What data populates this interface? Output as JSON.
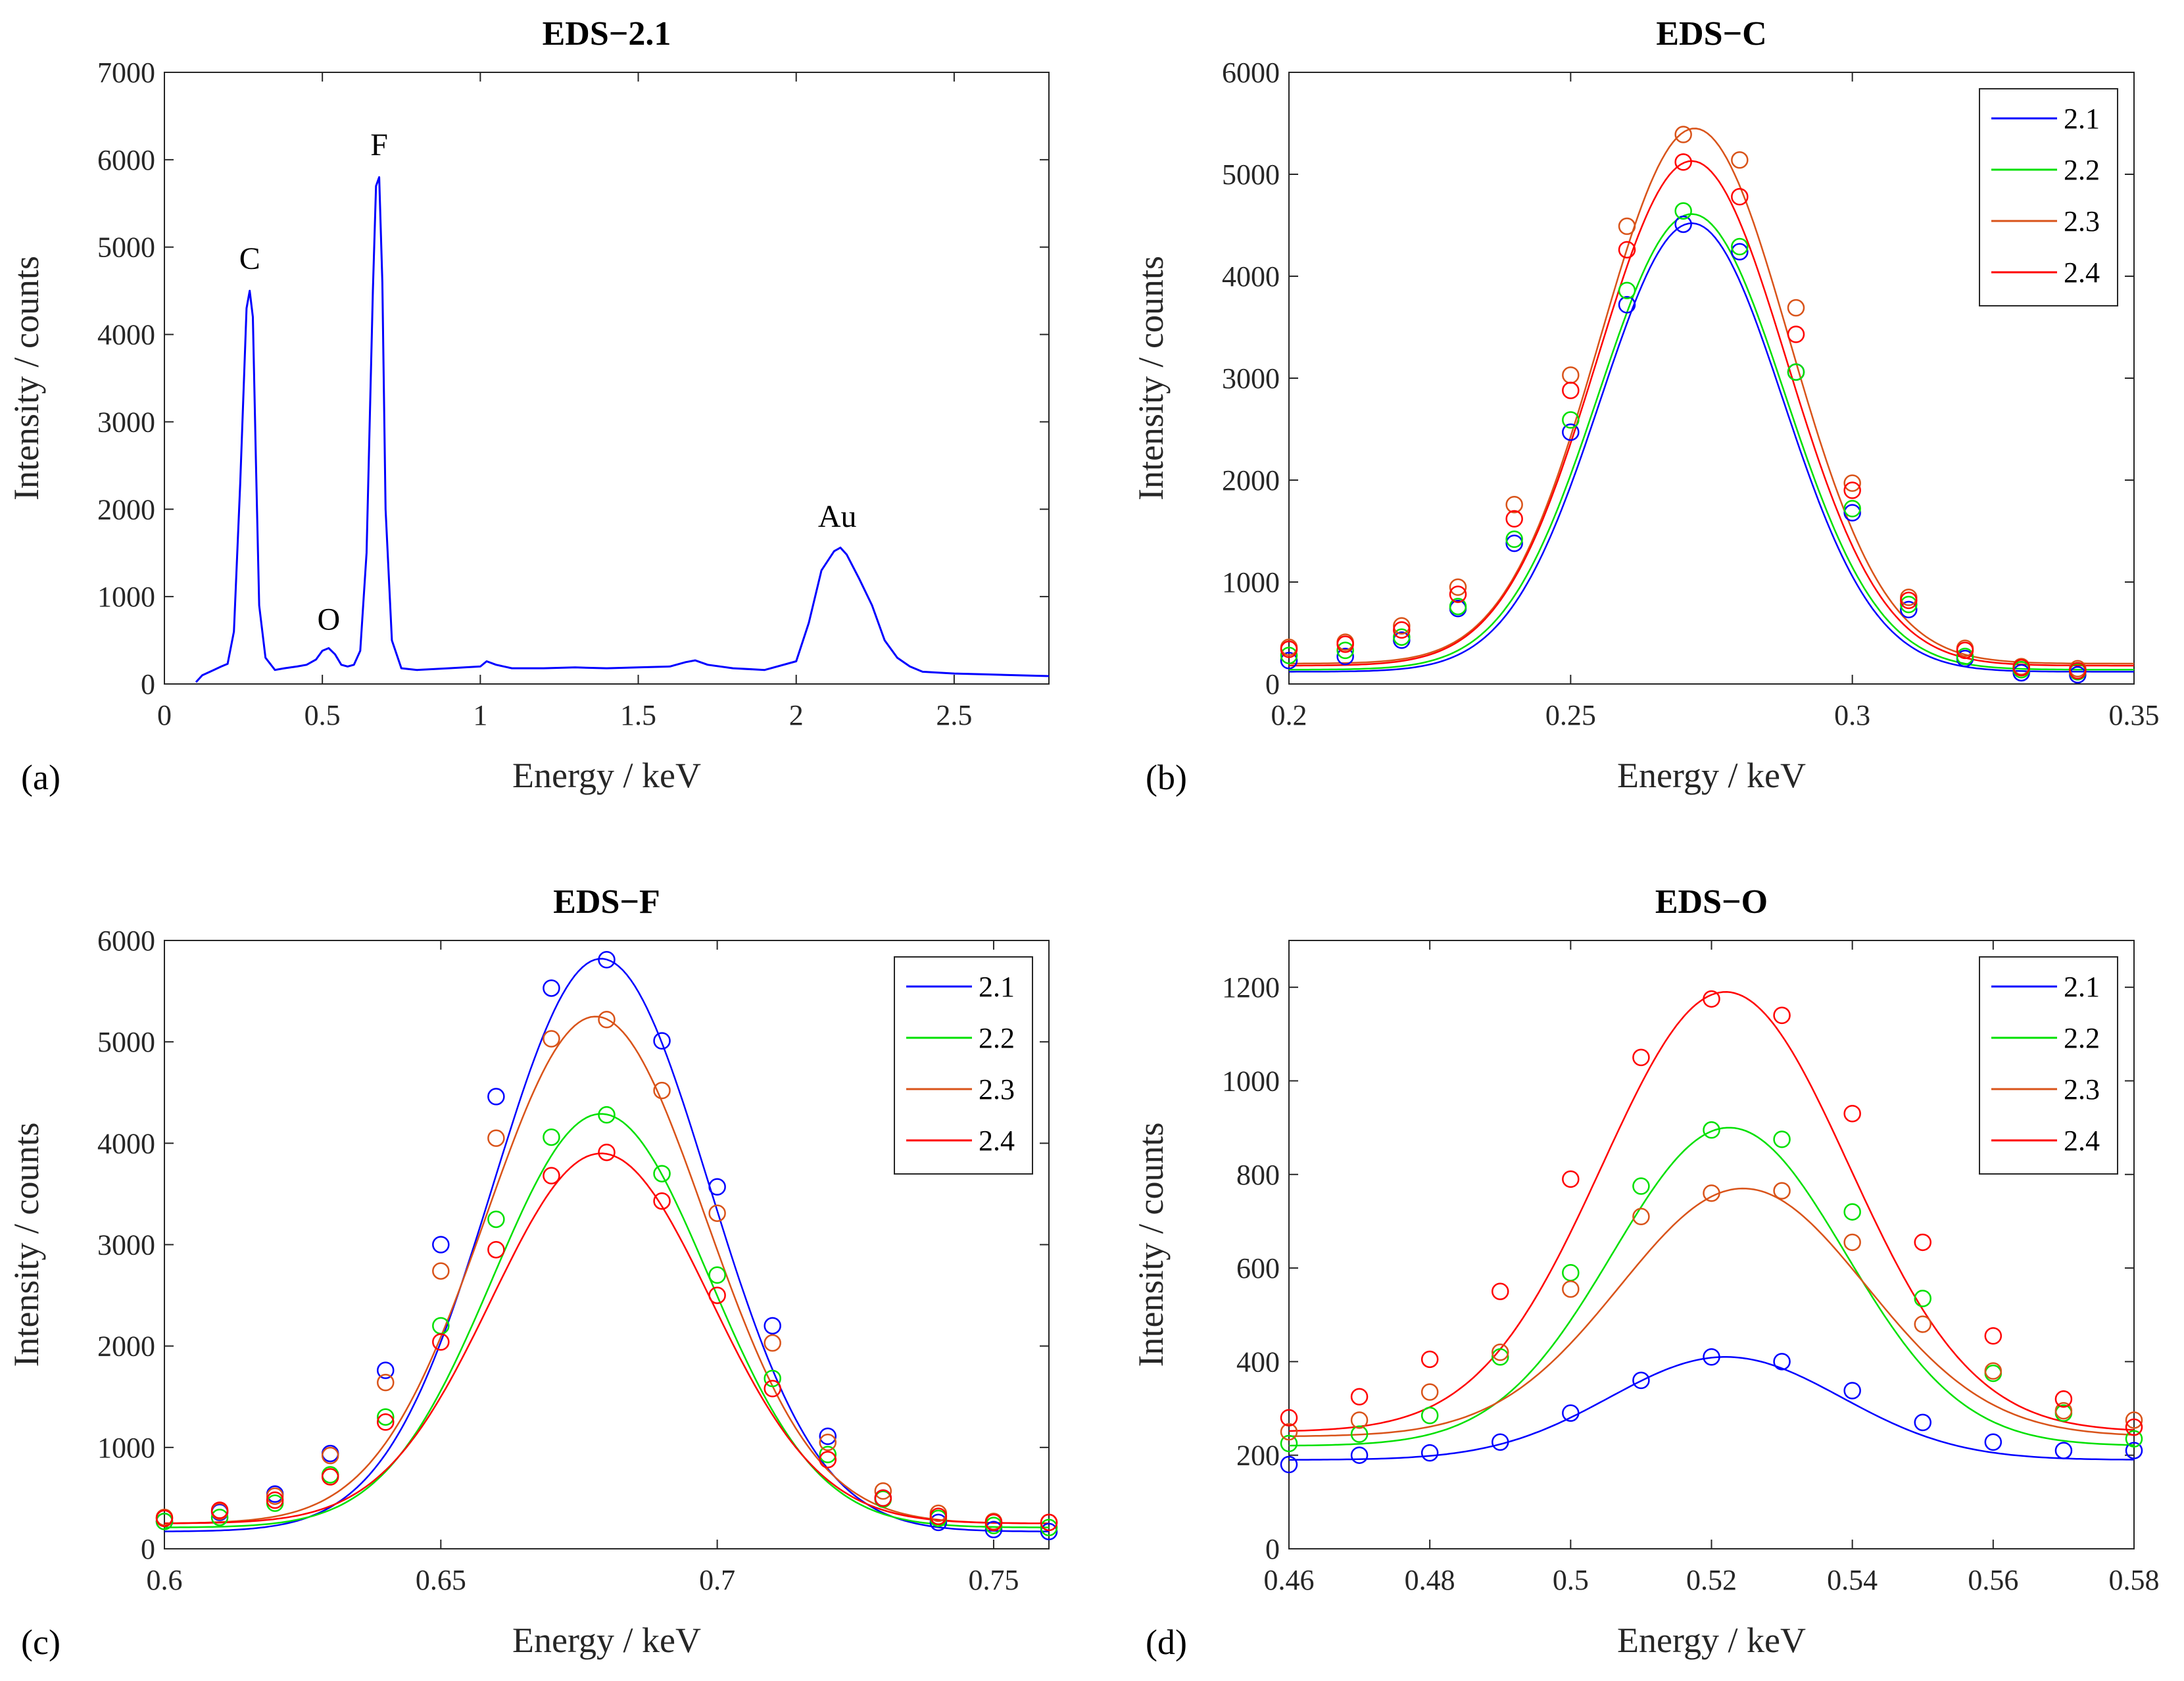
{
  "colors": {
    "s21": "#0000ff",
    "s22": "#00e000",
    "s23": "#d95319",
    "s24": "#ff0000"
  },
  "chart_data": [
    {
      "panel": "(a)",
      "title": "EDS−2.1",
      "type": "line",
      "xlabel": "Energy / keV",
      "ylabel": "Intensity / counts",
      "xlim": [
        0,
        2.8
      ],
      "ylim": [
        0,
        7000
      ],
      "xticks": [
        0,
        0.5,
        1,
        1.5,
        2,
        2.5
      ],
      "xtick_labels": [
        "0",
        "0.5",
        "1",
        "1.5",
        "2",
        "2.5"
      ],
      "yticks": [
        0,
        1000,
        2000,
        3000,
        4000,
        5000,
        6000,
        7000
      ],
      "ytick_labels": [
        "0",
        "1000",
        "2000",
        "3000",
        "4000",
        "5000",
        "6000",
        "7000"
      ],
      "series": [
        {
          "name": "2.1",
          "color": "#0000ff",
          "x": [
            0.1,
            0.12,
            0.15,
            0.18,
            0.2,
            0.22,
            0.24,
            0.26,
            0.27,
            0.28,
            0.29,
            0.3,
            0.32,
            0.35,
            0.38,
            0.42,
            0.45,
            0.48,
            0.5,
            0.52,
            0.54,
            0.56,
            0.58,
            0.6,
            0.62,
            0.64,
            0.66,
            0.67,
            0.68,
            0.69,
            0.7,
            0.72,
            0.75,
            0.8,
            0.9,
            1.0,
            1.02,
            1.05,
            1.1,
            1.2,
            1.3,
            1.4,
            1.5,
            1.6,
            1.65,
            1.68,
            1.72,
            1.8,
            1.9,
            2.0,
            2.04,
            2.08,
            2.12,
            2.14,
            2.16,
            2.2,
            2.24,
            2.28,
            2.32,
            2.36,
            2.4,
            2.5,
            2.6,
            2.7,
            2.8
          ],
          "y": [
            20,
            100,
            150,
            200,
            230,
            600,
            2300,
            4300,
            4500,
            4200,
            2500,
            900,
            300,
            160,
            180,
            200,
            220,
            280,
            380,
            410,
            340,
            220,
            200,
            220,
            380,
            1500,
            4500,
            5700,
            5800,
            4600,
            2000,
            500,
            180,
            160,
            180,
            200,
            260,
            220,
            180,
            180,
            190,
            180,
            190,
            200,
            250,
            270,
            220,
            180,
            160,
            260,
            700,
            1300,
            1520,
            1560,
            1480,
            1200,
            900,
            500,
            300,
            200,
            140,
            120,
            110,
            100,
            90
          ]
        }
      ],
      "annotations": [
        {
          "text": "C",
          "x": 0.27,
          "y": 4750
        },
        {
          "text": "O",
          "x": 0.52,
          "y": 620
        },
        {
          "text": "F",
          "x": 0.68,
          "y": 6050
        },
        {
          "text": "Au",
          "x": 2.13,
          "y": 1800
        }
      ]
    },
    {
      "panel": "(b)",
      "title": "EDS−C",
      "type": "line+scatter",
      "xlabel": "Energy / keV",
      "ylabel": "Intensity / counts",
      "xlim": [
        0.2,
        0.35
      ],
      "ylim": [
        0,
        6000
      ],
      "xticks": [
        0.2,
        0.25,
        0.3,
        0.35
      ],
      "xtick_labels": [
        "0.2",
        "0.25",
        "0.3",
        "0.35"
      ],
      "yticks": [
        0,
        1000,
        2000,
        3000,
        4000,
        5000,
        6000
      ],
      "ytick_labels": [
        "0",
        "1000",
        "2000",
        "3000",
        "4000",
        "5000",
        "6000"
      ],
      "legend_position": "top-right",
      "x": [
        0.2,
        0.21,
        0.22,
        0.23,
        0.24,
        0.25,
        0.26,
        0.27,
        0.28,
        0.29,
        0.3,
        0.31,
        0.32,
        0.33,
        0.34
      ],
      "series": [
        {
          "name": "2.1",
          "color": "#0000ff",
          "fit": {
            "A": 4400,
            "mu": 0.2715,
            "sigma": 0.0162,
            "base": 120
          },
          "points": [
            230,
            270,
            430,
            740,
            1380,
            2470,
            3720,
            4510,
            4240,
            3060,
            1680,
            730,
            250,
            110,
            90
          ]
        },
        {
          "name": "2.2",
          "color": "#00e000",
          "fit": {
            "A": 4470,
            "mu": 0.2715,
            "sigma": 0.0165,
            "base": 140
          },
          "points": [
            280,
            330,
            460,
            760,
            1420,
            2590,
            3860,
            4640,
            4290,
            3060,
            1720,
            780,
            270,
            140,
            120
          ]
        },
        {
          "name": "2.3",
          "color": "#d95319",
          "fit": {
            "A": 5250,
            "mu": 0.272,
            "sigma": 0.0168,
            "base": 200
          },
          "points": [
            360,
            410,
            570,
            950,
            1760,
            3030,
            4490,
            5390,
            5140,
            3690,
            1970,
            850,
            350,
            170,
            150
          ]
        },
        {
          "name": "2.4",
          "color": "#ff0000",
          "fit": {
            "A": 4950,
            "mu": 0.2715,
            "sigma": 0.0168,
            "base": 180
          },
          "points": [
            340,
            390,
            530,
            880,
            1620,
            2880,
            4260,
            5120,
            4780,
            3430,
            1900,
            820,
            330,
            160,
            130
          ]
        }
      ]
    },
    {
      "panel": "(c)",
      "title": "EDS−F",
      "type": "line+scatter",
      "xlabel": "Energy / keV",
      "ylabel": "Intensity / counts",
      "xlim": [
        0.6,
        0.76
      ],
      "ylim": [
        0,
        6000
      ],
      "xticks": [
        0.6,
        0.65,
        0.7,
        0.75
      ],
      "xtick_labels": [
        "0.6",
        "0.65",
        "0.7",
        "0.75"
      ],
      "yticks": [
        0,
        1000,
        2000,
        3000,
        4000,
        5000,
        6000
      ],
      "ytick_labels": [
        "0",
        "1000",
        "2000",
        "3000",
        "4000",
        "5000",
        "6000"
      ],
      "legend_position": "top-right",
      "x": [
        0.6,
        0.61,
        0.62,
        0.63,
        0.64,
        0.65,
        0.66,
        0.67,
        0.68,
        0.69,
        0.7,
        0.71,
        0.72,
        0.73,
        0.74,
        0.75,
        0.76
      ],
      "series": [
        {
          "name": "2.1",
          "color": "#0000ff",
          "fit": {
            "A": 5650,
            "mu": 0.679,
            "sigma": 0.0195,
            "base": 170
          },
          "points": [
            270,
            360,
            540,
            940,
            1760,
            3000,
            4460,
            5530,
            5810,
            5010,
            3570,
            2200,
            1110,
            500,
            260,
            190,
            170
          ]
        },
        {
          "name": "2.2",
          "color": "#00e000",
          "fit": {
            "A": 4080,
            "mu": 0.679,
            "sigma": 0.0195,
            "base": 210
          },
          "points": [
            270,
            310,
            450,
            730,
            1300,
            2200,
            3250,
            4060,
            4280,
            3700,
            2700,
            1680,
            930,
            490,
            300,
            230,
            210
          ]
        },
        {
          "name": "2.3",
          "color": "#d95319",
          "fit": {
            "A": 5000,
            "mu": 0.678,
            "sigma": 0.0198,
            "base": 250
          },
          "points": [
            310,
            370,
            520,
            920,
            1640,
            2740,
            4050,
            5030,
            5220,
            4520,
            3310,
            2030,
            1050,
            570,
            350,
            270,
            260
          ]
        },
        {
          "name": "2.4",
          "color": "#ff0000",
          "fit": {
            "A": 3650,
            "mu": 0.679,
            "sigma": 0.0198,
            "base": 250
          },
          "points": [
            300,
            380,
            480,
            710,
            1250,
            2040,
            2950,
            3680,
            3910,
            3430,
            2500,
            1580,
            880,
            500,
            320,
            260,
            260
          ]
        }
      ]
    },
    {
      "panel": "(d)",
      "title": "EDS−O",
      "type": "line+scatter",
      "xlabel": "Energy / keV",
      "ylabel": "Intensity / counts",
      "xlim": [
        0.46,
        0.58
      ],
      "ylim": [
        0,
        1300
      ],
      "xticks": [
        0.46,
        0.48,
        0.5,
        0.52,
        0.54,
        0.56,
        0.58
      ],
      "xtick_labels": [
        "0.46",
        "0.48",
        "0.5",
        "0.52",
        "0.54",
        "0.56",
        "0.58"
      ],
      "yticks": [
        0,
        200,
        400,
        600,
        800,
        1000,
        1200
      ],
      "ytick_labels": [
        "0",
        "200",
        "400",
        "600",
        "800",
        "1000",
        "1200"
      ],
      "legend_position": "top-right",
      "x": [
        0.46,
        0.47,
        0.48,
        0.49,
        0.5,
        0.51,
        0.52,
        0.53,
        0.54,
        0.55,
        0.56,
        0.57,
        0.58
      ],
      "series": [
        {
          "name": "2.1",
          "color": "#0000ff",
          "fit": {
            "A": 220,
            "mu": 0.522,
            "sigma": 0.0165,
            "base": 190
          },
          "points": [
            180,
            200,
            205,
            228,
            290,
            360,
            410,
            400,
            338,
            270,
            228,
            210,
            210
          ]
        },
        {
          "name": "2.2",
          "color": "#00e000",
          "fit": {
            "A": 680,
            "mu": 0.5225,
            "sigma": 0.0165,
            "base": 220
          },
          "points": [
            225,
            245,
            285,
            410,
            590,
            775,
            895,
            875,
            720,
            535,
            375,
            290,
            235
          ]
        },
        {
          "name": "2.3",
          "color": "#d95319",
          "fit": {
            "A": 530,
            "mu": 0.5245,
            "sigma": 0.0175,
            "base": 240
          },
          "points": [
            250,
            275,
            335,
            420,
            555,
            710,
            760,
            765,
            655,
            480,
            380,
            295,
            275
          ]
        },
        {
          "name": "2.4",
          "color": "#ff0000",
          "fit": {
            "A": 940,
            "mu": 0.522,
            "sigma": 0.0175,
            "base": 250
          },
          "points": [
            280,
            325,
            405,
            550,
            790,
            1050,
            1175,
            1140,
            930,
            655,
            455,
            320,
            260
          ]
        }
      ]
    }
  ]
}
